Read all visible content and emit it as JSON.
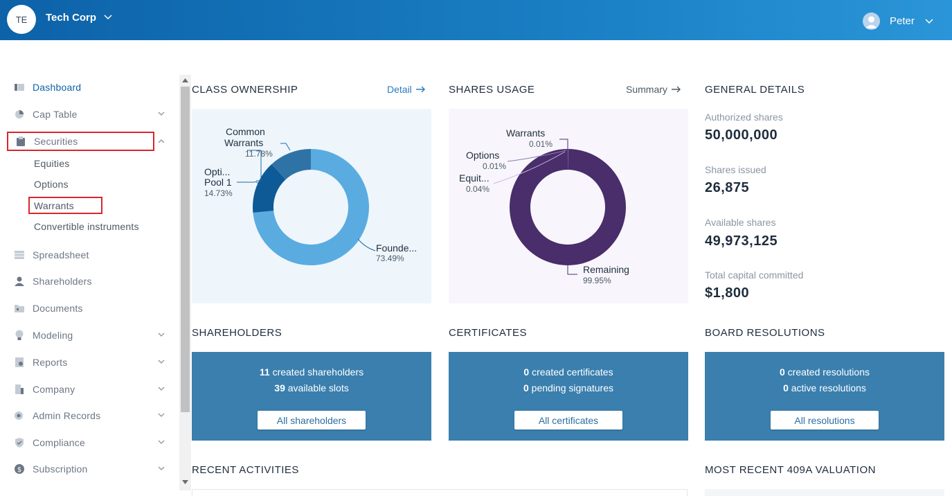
{
  "header": {
    "org_initials": "TE",
    "org_name": "Tech Corp",
    "user_name": "Peter"
  },
  "sidebar": {
    "items": [
      {
        "label": "Dashboard",
        "icon": "dashboard-icon",
        "active": true
      },
      {
        "label": "Cap Table",
        "icon": "pie-chart-icon"
      },
      {
        "label": "Securities",
        "icon": "clipboard-icon",
        "expanded": true
      },
      {
        "label": "Spreadsheet",
        "icon": "spreadsheet-icon"
      },
      {
        "label": "Shareholders",
        "icon": "person-icon"
      },
      {
        "label": "Documents",
        "icon": "folder-icon"
      },
      {
        "label": "Modeling",
        "icon": "lightbulb-icon"
      },
      {
        "label": "Reports",
        "icon": "report-icon"
      },
      {
        "label": "Company",
        "icon": "building-icon"
      },
      {
        "label": "Admin Records",
        "icon": "admin-icon"
      },
      {
        "label": "Compliance",
        "icon": "shield-icon"
      },
      {
        "label": "Subscription",
        "icon": "dollar-icon"
      }
    ],
    "securities_sub": [
      "Equities",
      "Options",
      "Warrants",
      "Convertible instruments"
    ]
  },
  "class_ownership": {
    "title": "CLASS OWNERSHIP",
    "link": "Detail"
  },
  "shares_usage": {
    "title": "SHARES USAGE",
    "link": "Summary"
  },
  "general_details": {
    "title": "GENERAL DETAILS",
    "items": [
      {
        "label": "Authorized shares",
        "value": "50,000,000"
      },
      {
        "label": "Shares issued",
        "value": "26,875"
      },
      {
        "label": "Available shares",
        "value": "49,973,125"
      },
      {
        "label": "Total capital committed",
        "value": "$1,800"
      }
    ]
  },
  "shareholders": {
    "title": "SHAREHOLDERS",
    "line1_num": "11",
    "line1_text": " created shareholders",
    "line2_num": "39",
    "line2_text": " available slots",
    "button": "All shareholders"
  },
  "certificates": {
    "title": "CERTIFICATES",
    "line1_num": "0",
    "line1_text": " created certificates",
    "line2_num": "0",
    "line2_text": " pending signatures",
    "button": "All certificates"
  },
  "board_resolutions": {
    "title": "BOARD RESOLUTIONS",
    "line1_num": "0",
    "line1_text": " created resolutions",
    "line2_num": "0",
    "line2_text": " active resolutions",
    "button": "All resolutions"
  },
  "recent_activities": {
    "title": "RECENT ACTIVITIES"
  },
  "valuation": {
    "title": "MOST RECENT 409A VALUATION"
  },
  "chart_data": [
    {
      "type": "pie",
      "title": "CLASS OWNERSHIP",
      "slices": [
        {
          "name": "Founde...",
          "pct_label": "73.49%",
          "value": 73.49,
          "color": "#5aace0"
        },
        {
          "name": "Opti... Pool 1",
          "pct_label": "14.73%",
          "value": 14.73,
          "color": "#0d5a96"
        },
        {
          "name": "Common Warrants",
          "pct_label": "11.78%",
          "value": 11.78,
          "color": "#2f73a6"
        }
      ]
    },
    {
      "type": "pie",
      "title": "SHARES USAGE",
      "slices": [
        {
          "name": "Remaining",
          "pct_label": "99.95%",
          "value": 99.95,
          "color": "#4a2d6b"
        },
        {
          "name": "Equit...",
          "pct_label": "0.04%",
          "value": 0.04,
          "color": "#8a7aa8"
        },
        {
          "name": "Options",
          "pct_label": "0.01%",
          "value": 0.01,
          "color": "#a898c4"
        },
        {
          "name": "Warrants",
          "pct_label": "0.01%",
          "value": 0.01,
          "color": "#c7b9dd"
        }
      ]
    }
  ]
}
